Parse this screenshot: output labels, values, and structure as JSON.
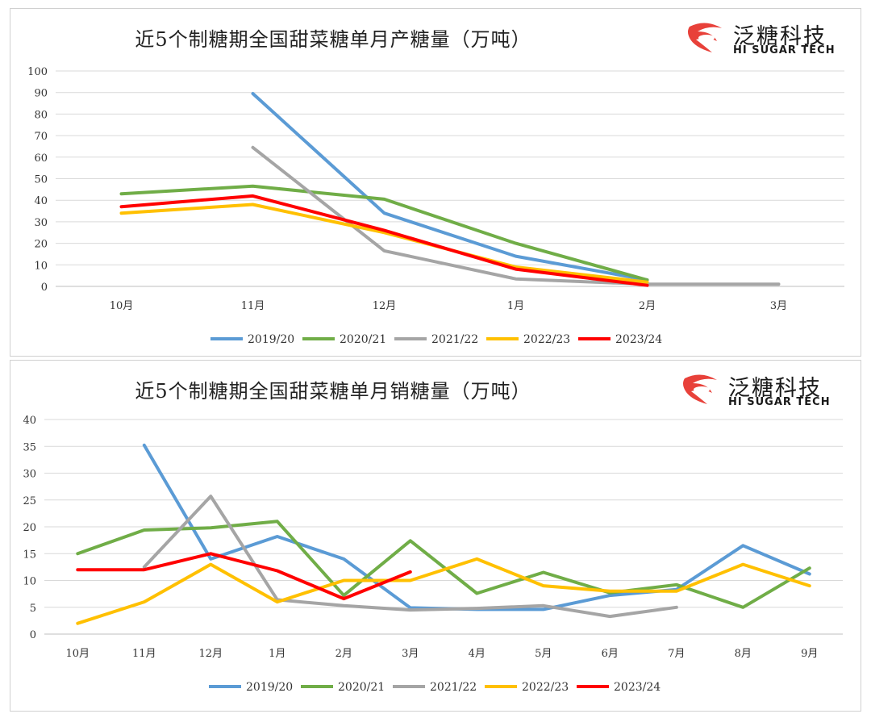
{
  "logo": {
    "name": "泛糖科技",
    "sub": "HI SUGAR TECH",
    "color": "#e8413a"
  },
  "chart_data": [
    {
      "type": "line",
      "title": "近5个制糖期全国甜菜糖单月产糖量（万吨）",
      "categories": [
        "10月",
        "11月",
        "12月",
        "1月",
        "2月",
        "3月"
      ],
      "ylim": [
        0,
        100
      ],
      "yticks": [
        0,
        10,
        20,
        30,
        40,
        50,
        60,
        70,
        80,
        90,
        100
      ],
      "grid": true,
      "legend": "bottom",
      "series": [
        {
          "name": "2019/20",
          "color": "#5b9bd5",
          "values": [
            null,
            89.5,
            34,
            14,
            3,
            null
          ]
        },
        {
          "name": "2020/21",
          "color": "#70ad47",
          "values": [
            43,
            46.5,
            40.5,
            20,
            3,
            null
          ]
        },
        {
          "name": "2021/22",
          "color": "#a5a5a5",
          "values": [
            null,
            64.5,
            16.5,
            3.5,
            1,
            1
          ]
        },
        {
          "name": "2022/23",
          "color": "#ffc000",
          "values": [
            34,
            38,
            25,
            9,
            2,
            null
          ]
        },
        {
          "name": "2023/24",
          "color": "#ff0000",
          "values": [
            37,
            42,
            26,
            8,
            0.5,
            null
          ]
        }
      ]
    },
    {
      "type": "line",
      "title": "近5个制糖期全国甜菜糖单月销糖量（万吨）",
      "categories": [
        "10月",
        "11月",
        "12月",
        "1月",
        "2月",
        "3月",
        "4月",
        "5月",
        "6月",
        "7月",
        "8月",
        "9月"
      ],
      "ylim": [
        0,
        40
      ],
      "yticks": [
        0,
        5,
        10,
        15,
        20,
        25,
        30,
        35,
        40
      ],
      "grid": true,
      "legend": "bottom",
      "series": [
        {
          "name": "2019/20",
          "color": "#5b9bd5",
          "values": [
            null,
            35.2,
            14,
            18.2,
            14,
            4.9,
            4.6,
            4.6,
            7.2,
            8.3,
            16.5,
            11.2
          ]
        },
        {
          "name": "2020/21",
          "color": "#70ad47",
          "values": [
            15,
            19.4,
            19.8,
            21,
            7.2,
            17.4,
            7.6,
            11.5,
            7.7,
            9.2,
            5,
            12.3
          ]
        },
        {
          "name": "2021/22",
          "color": "#a5a5a5",
          "values": [
            null,
            12.5,
            25.7,
            6.4,
            5.3,
            4.5,
            4.8,
            5.3,
            3.3,
            5,
            null,
            null
          ]
        },
        {
          "name": "2022/23",
          "color": "#ffc000",
          "values": [
            2,
            6,
            13,
            6,
            10,
            10,
            14,
            9,
            8,
            8,
            13,
            9
          ]
        },
        {
          "name": "2023/24",
          "color": "#ff0000",
          "values": [
            12,
            12,
            15,
            11.8,
            6.6,
            11.6,
            null,
            null,
            null,
            null,
            null,
            null
          ]
        }
      ]
    }
  ]
}
